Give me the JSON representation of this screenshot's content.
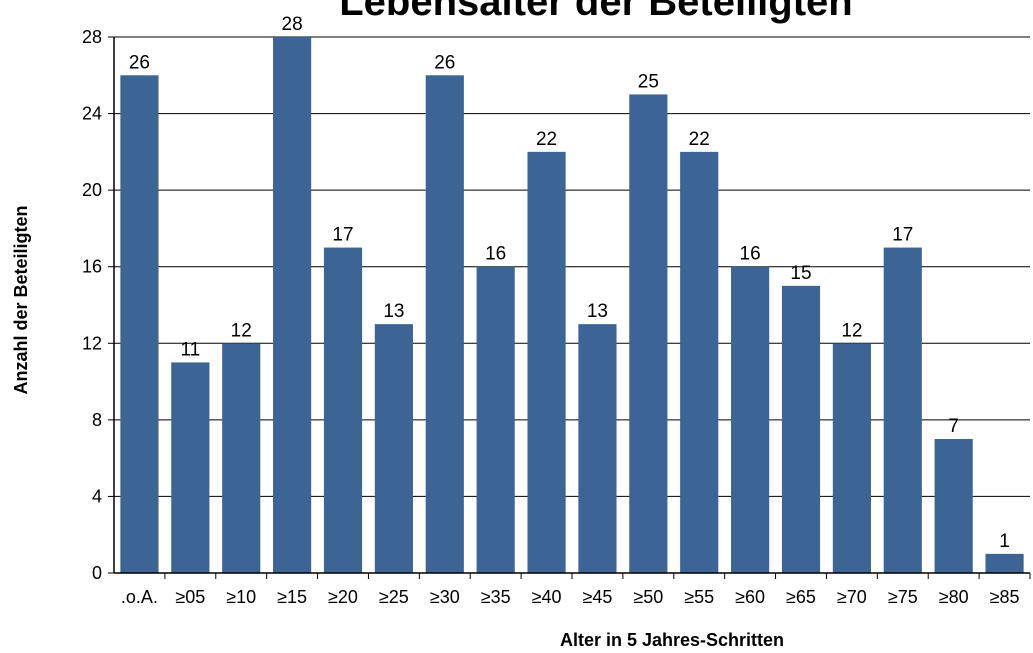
{
  "chart_data": {
    "type": "bar",
    "title": "Lebensalter der Beteiligten",
    "xlabel": "Alter in 5 Jahres-Schritten",
    "ylabel": "Anzahl der Beteiligten",
    "categories": [
      ".o.A.",
      "≥05",
      "≥10",
      "≥15",
      "≥20",
      "≥25",
      "≥30",
      "≥35",
      "≥40",
      "≥45",
      "≥50",
      "≥55",
      "≥60",
      "≥65",
      "≥70",
      "≥75",
      "≥80",
      "≥85"
    ],
    "values": [
      26,
      11,
      12,
      28,
      17,
      13,
      26,
      16,
      22,
      13,
      25,
      22,
      16,
      15,
      12,
      17,
      7,
      1
    ],
    "ylim": [
      0,
      28
    ],
    "yticks": [
      0,
      4,
      8,
      12,
      16,
      20,
      24,
      28
    ],
    "grid": true,
    "legend": "none",
    "bar_color": "#3c6595"
  }
}
